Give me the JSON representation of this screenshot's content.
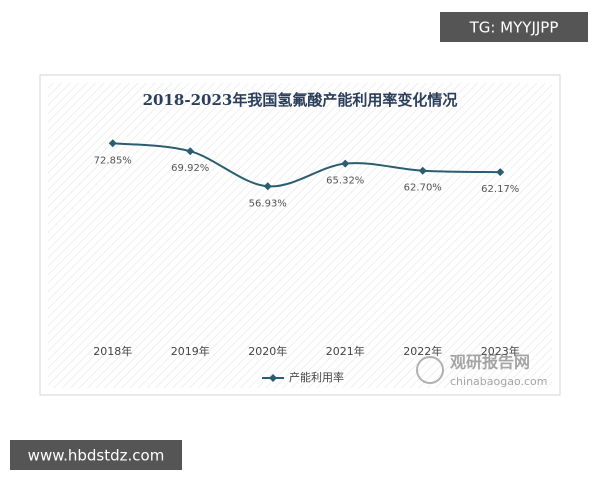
{
  "chart_data": {
    "type": "line",
    "title": "2018-2023年我国氢氟酸产能利用率变化情况",
    "categories": [
      "2018年",
      "2019年",
      "2020年",
      "2021年",
      "2022年",
      "2023年"
    ],
    "series": [
      {
        "name": "产能利用率",
        "color": "#2b5d70",
        "values": [
          72.85,
          69.92,
          56.93,
          65.32,
          62.7,
          62.17
        ],
        "value_labels": [
          "72.85%",
          "69.92%",
          "56.93%",
          "65.32%",
          "62.70%",
          "62.17%"
        ]
      }
    ],
    "ylim": [
      0,
      80
    ],
    "grid": false,
    "legend": "bottom"
  },
  "watermark": {
    "name": "观研报告网",
    "url": "chinabaogao.com"
  },
  "badges": {
    "top_right": "TG: MYYJJPP",
    "bottom_left": "www.hbdstdz.com"
  }
}
